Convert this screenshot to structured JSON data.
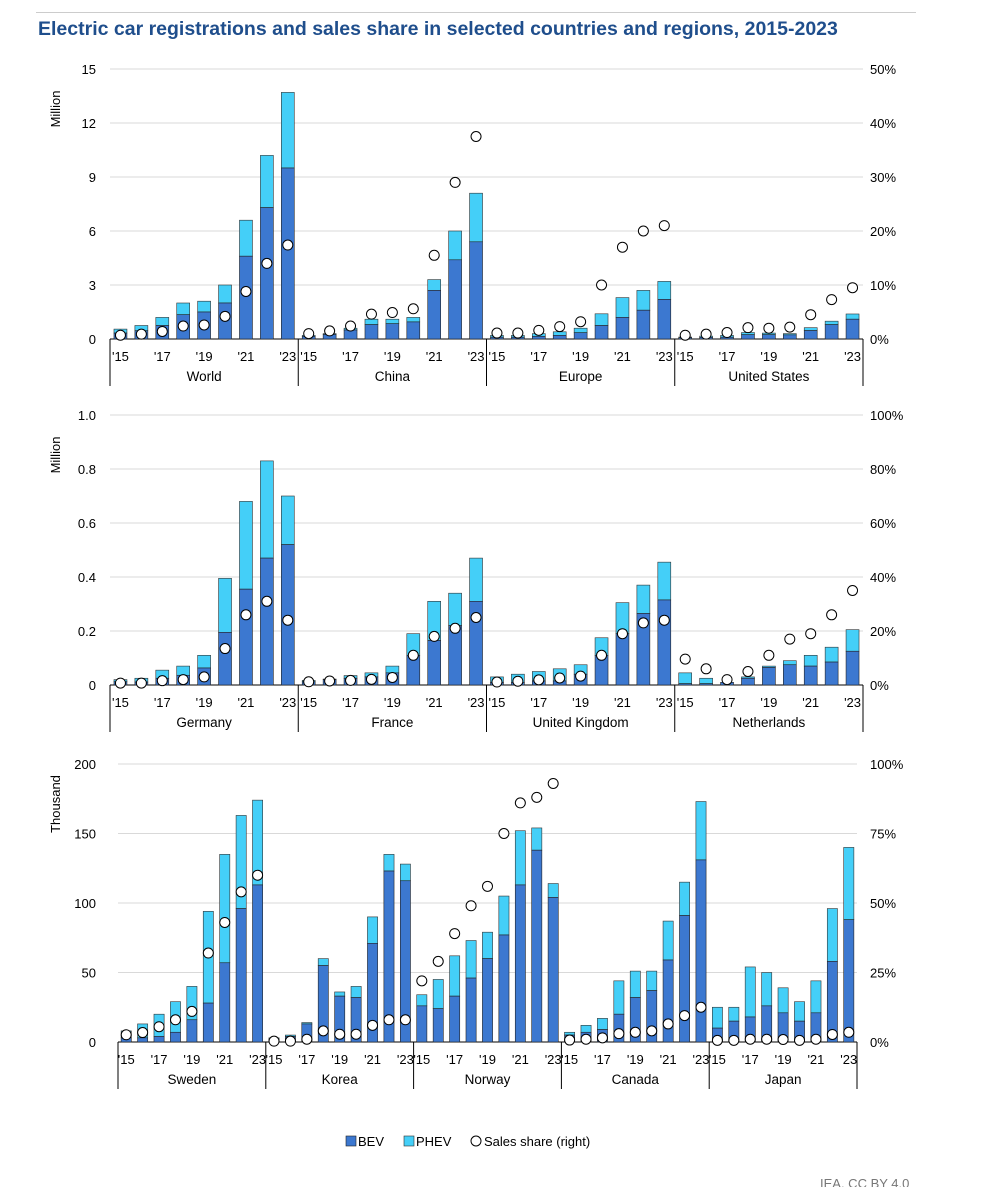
{
  "title": "Electric car registrations and sales share in selected countries and regions, 2015-2023",
  "source": "IEA. CC BY 4.0",
  "legend": {
    "bev": "BEV",
    "phev": "PHEV",
    "share": "Sales share (right)"
  },
  "colors": {
    "bev": "#3c78d0",
    "phev": "#44cff8",
    "share_marker": "#ffffff",
    "grid": "#d9d9d9"
  },
  "chart_data": [
    {
      "type": "bar",
      "stacked": true,
      "ylabel": "Million",
      "ylim": [
        0,
        15
      ],
      "y2lim": [
        0,
        50
      ],
      "yticks": [
        "0",
        "3",
        "6",
        "9",
        "12",
        "15"
      ],
      "y2ticks": [
        "0%",
        "10%",
        "20%",
        "30%",
        "40%",
        "50%"
      ],
      "year_labels": [
        "'15",
        "'17",
        "'19",
        "'21",
        "'23"
      ],
      "years": [
        2015,
        2016,
        2017,
        2018,
        2019,
        2020,
        2021,
        2022,
        2023
      ],
      "grid": true,
      "groups": [
        {
          "name": "World",
          "bev": [
            0.33,
            0.46,
            0.75,
            1.35,
            1.5,
            2.0,
            4.6,
            7.3,
            9.5
          ],
          "phev": [
            0.22,
            0.29,
            0.45,
            0.65,
            0.6,
            1.0,
            2.0,
            2.9,
            4.2
          ],
          "share": [
            0.7,
            0.9,
            1.4,
            2.4,
            2.6,
            4.2,
            8.8,
            14,
            17.4
          ]
        },
        {
          "name": "China",
          "bev": [
            0.15,
            0.25,
            0.5,
            0.8,
            0.85,
            0.95,
            2.7,
            4.4,
            5.4
          ],
          "phev": [
            0.05,
            0.05,
            0.1,
            0.3,
            0.25,
            0.25,
            0.6,
            1.6,
            2.7
          ],
          "share": [
            1,
            1.5,
            2.4,
            4.6,
            4.9,
            5.6,
            15.5,
            29,
            37.5
          ]
        },
        {
          "name": "Europe",
          "bev": [
            0.1,
            0.1,
            0.15,
            0.2,
            0.35,
            0.75,
            1.2,
            1.6,
            2.2
          ],
          "phev": [
            0.1,
            0.1,
            0.15,
            0.2,
            0.25,
            0.65,
            1.1,
            1.1,
            1.0
          ],
          "share": [
            1.1,
            1.1,
            1.6,
            2.3,
            3.2,
            10,
            17,
            20,
            21
          ]
        },
        {
          "name": "United States",
          "bev": [
            0.07,
            0.09,
            0.1,
            0.24,
            0.24,
            0.23,
            0.47,
            0.8,
            1.1
          ],
          "phev": [
            0.04,
            0.07,
            0.1,
            0.12,
            0.09,
            0.07,
            0.16,
            0.19,
            0.29
          ],
          "share": [
            0.7,
            0.9,
            1.2,
            2.1,
            2.0,
            2.2,
            4.5,
            7.3,
            9.5
          ]
        }
      ]
    },
    {
      "type": "bar",
      "stacked": true,
      "ylabel": "Million",
      "ylim": [
        0,
        1.0
      ],
      "y2lim": [
        0,
        100
      ],
      "yticks": [
        "0",
        "0.2",
        "0.4",
        "0.6",
        "0.8",
        "1.0"
      ],
      "y2ticks": [
        "0%",
        "20%",
        "40%",
        "60%",
        "80%",
        "100%"
      ],
      "year_labels": [
        "'15",
        "'17",
        "'19",
        "'21",
        "'23"
      ],
      "years": [
        2015,
        2016,
        2017,
        2018,
        2019,
        2020,
        2021,
        2022,
        2023
      ],
      "grid": true,
      "groups": [
        {
          "name": "Germany",
          "bev": [
            0.012,
            0.011,
            0.025,
            0.036,
            0.063,
            0.195,
            0.355,
            0.47,
            0.52
          ],
          "phev": [
            0.008,
            0.014,
            0.03,
            0.034,
            0.047,
            0.2,
            0.325,
            0.36,
            0.18
          ],
          "share": [
            0.7,
            0.7,
            1.6,
            2.0,
            3.0,
            13.5,
            26,
            31,
            24
          ]
        },
        {
          "name": "France",
          "bev": [
            0.012,
            0.02,
            0.025,
            0.03,
            0.045,
            0.11,
            0.165,
            0.22,
            0.31
          ],
          "phev": [
            0.005,
            0.002,
            0.01,
            0.015,
            0.025,
            0.08,
            0.145,
            0.12,
            0.16
          ],
          "share": [
            1.2,
            1.5,
            1.7,
            2.1,
            2.8,
            11,
            18,
            21,
            25
          ]
        },
        {
          "name": "United Kingdom",
          "bev": [
            0.01,
            0.01,
            0.015,
            0.015,
            0.04,
            0.11,
            0.19,
            0.265,
            0.315
          ],
          "phev": [
            0.02,
            0.03,
            0.035,
            0.045,
            0.035,
            0.065,
            0.115,
            0.105,
            0.14
          ],
          "share": [
            1.1,
            1.4,
            1.9,
            2.6,
            3.3,
            11,
            19,
            23,
            24
          ]
        },
        {
          "name": "Netherlands",
          "bev": [
            0.005,
            0.005,
            0.01,
            0.025,
            0.065,
            0.075,
            0.07,
            0.085,
            0.125
          ],
          "phev": [
            0.04,
            0.02,
            0.0,
            0.005,
            0.005,
            0.015,
            0.04,
            0.055,
            0.08
          ],
          "share": [
            9.6,
            6,
            2,
            5,
            11,
            17,
            19,
            26,
            35
          ]
        }
      ]
    },
    {
      "type": "bar",
      "stacked": true,
      "ylabel": "Thousand",
      "ylim": [
        0,
        200
      ],
      "y2lim": [
        0,
        100
      ],
      "yticks": [
        "0",
        "50",
        "100",
        "150",
        "200"
      ],
      "y2ticks": [
        "0%",
        "25%",
        "50%",
        "75%",
        "100%"
      ],
      "year_labels": [
        "'15",
        "'17",
        "'19",
        "'21",
        "'23"
      ],
      "years": [
        2015,
        2016,
        2017,
        2018,
        2019,
        2020,
        2021,
        2022,
        2023
      ],
      "grid": true,
      "groups": [
        {
          "name": "Sweden",
          "bev": [
            3,
            3,
            4,
            7,
            16,
            28,
            57,
            96,
            113
          ],
          "phev": [
            5,
            10,
            16,
            22,
            24,
            66,
            78,
            67,
            61
          ],
          "share": [
            2.6,
            3.4,
            5.5,
            8,
            11,
            32,
            43,
            54,
            60
          ]
        },
        {
          "name": "Korea",
          "bev": [
            2,
            4,
            13,
            55,
            33,
            32,
            71,
            123,
            116
          ],
          "phev": [
            1,
            1,
            1,
            5,
            3,
            8,
            19,
            12,
            12
          ],
          "share": [
            0.3,
            0.3,
            1,
            4,
            2.8,
            2.8,
            6,
            8,
            8
          ]
        },
        {
          "name": "Norway",
          "bev": [
            26,
            24,
            33,
            46,
            60,
            77,
            113,
            138,
            104
          ],
          "phev": [
            8,
            21,
            29,
            27,
            19,
            28,
            39,
            16,
            10
          ],
          "share": [
            22,
            29,
            39,
            49,
            56,
            75,
            86,
            88,
            93
          ]
        },
        {
          "name": "Canada",
          "bev": [
            5,
            7,
            9,
            20,
            32,
            37,
            59,
            91,
            131
          ],
          "phev": [
            2,
            5,
            8,
            24,
            19,
            14,
            28,
            24,
            42
          ],
          "share": [
            0.7,
            1,
            1.5,
            3,
            3.5,
            4,
            6.5,
            9.5,
            12.5
          ]
        },
        {
          "name": "Japan",
          "bev": [
            10,
            15,
            18,
            26,
            21,
            15,
            21,
            58,
            88
          ],
          "phev": [
            15,
            10,
            36,
            24,
            18,
            14,
            23,
            38,
            52
          ],
          "share": [
            0.6,
            0.6,
            1,
            1,
            0.9,
            0.6,
            1,
            2.7,
            3.5
          ]
        }
      ]
    }
  ]
}
